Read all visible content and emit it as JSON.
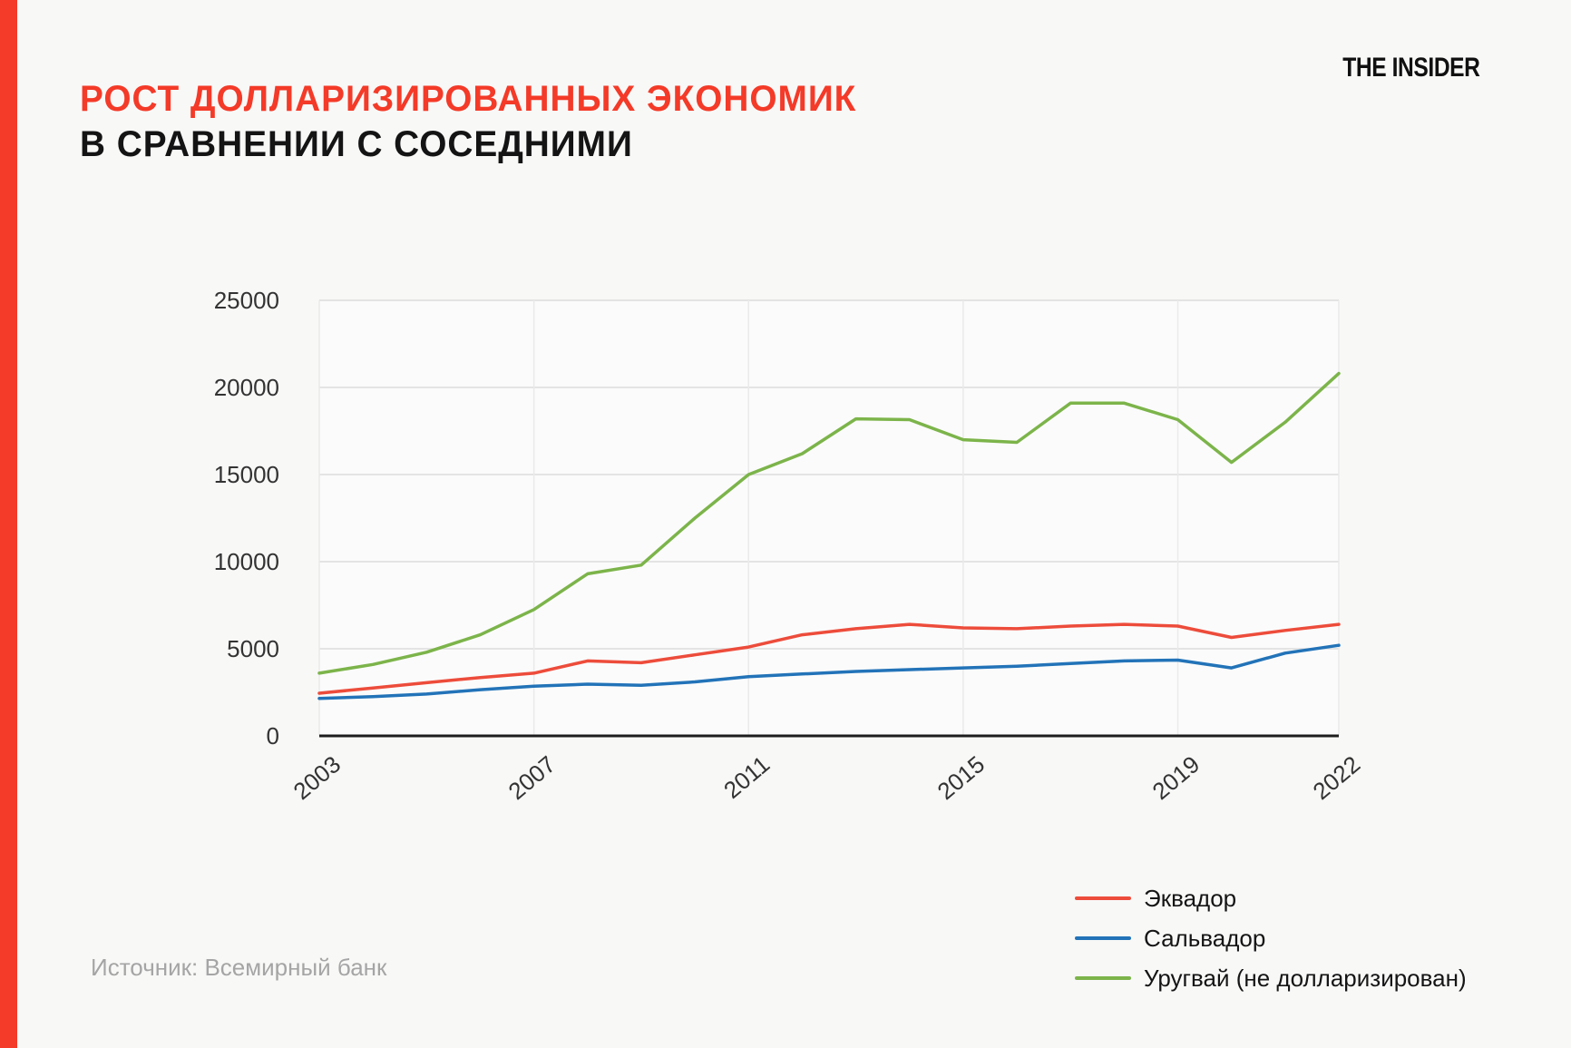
{
  "brand": {
    "logo_text": "THE INSIDER"
  },
  "header": {
    "title_line1": "РОСТ ДОЛЛАРИЗИРОВАННЫХ ЭКОНОМИК",
    "title_line2": "В СРАВНЕНИИ С СОСЕДНИМИ"
  },
  "footer": {
    "source_text": "Источник: Всемирный банк"
  },
  "colors": {
    "accent_red": "#f43a28",
    "ecuador_red": "#ed4c3b",
    "salvador_blue": "#2273b8",
    "uruguay_green": "#7cb44a",
    "axis_black": "#1d1d1d",
    "source_gray": "#a5a5a5"
  },
  "chart_data": {
    "type": "line",
    "title": "РОСТ ДОЛЛАРИЗИРОВАННЫХ ЭКОНОМИК В СРАВНЕНИИ С СОСЕДНИМИ",
    "xlabel": "",
    "ylabel": "",
    "x": [
      2003,
      2004,
      2005,
      2006,
      2007,
      2008,
      2009,
      2010,
      2011,
      2012,
      2013,
      2014,
      2015,
      2016,
      2017,
      2018,
      2019,
      2020,
      2021,
      2022
    ],
    "series": [
      {
        "name": "Эквадор",
        "color": "#ed4c3b",
        "values": [
          2450,
          2750,
          3050,
          3350,
          3600,
          4300,
          4200,
          4650,
          5100,
          5800,
          6150,
          6400,
          6200,
          6150,
          6300,
          6400,
          6300,
          5650,
          6050,
          6400
        ]
      },
      {
        "name": "Сальвадор",
        "color": "#2273b8",
        "values": [
          2150,
          2250,
          2400,
          2650,
          2850,
          2970,
          2900,
          3100,
          3400,
          3550,
          3700,
          3800,
          3900,
          4000,
          4150,
          4300,
          4350,
          3900,
          4750,
          5200
        ]
      },
      {
        "name": "Уругвай (не долларизирован)",
        "color": "#7cb44a",
        "values": [
          3600,
          4100,
          4800,
          5800,
          7250,
          9300,
          9800,
          12500,
          15000,
          16200,
          18200,
          18150,
          17000,
          16850,
          19100,
          19100,
          18150,
          15700,
          18000,
          20800
        ]
      }
    ],
    "xlim": [
      2003,
      2022
    ],
    "ylim": [
      0,
      25000
    ],
    "x_ticks": [
      2003,
      2007,
      2011,
      2015,
      2019,
      2022
    ],
    "y_ticks": [
      0,
      5000,
      10000,
      15000,
      20000,
      25000
    ],
    "grid": true,
    "legend_position": "bottom-right"
  }
}
